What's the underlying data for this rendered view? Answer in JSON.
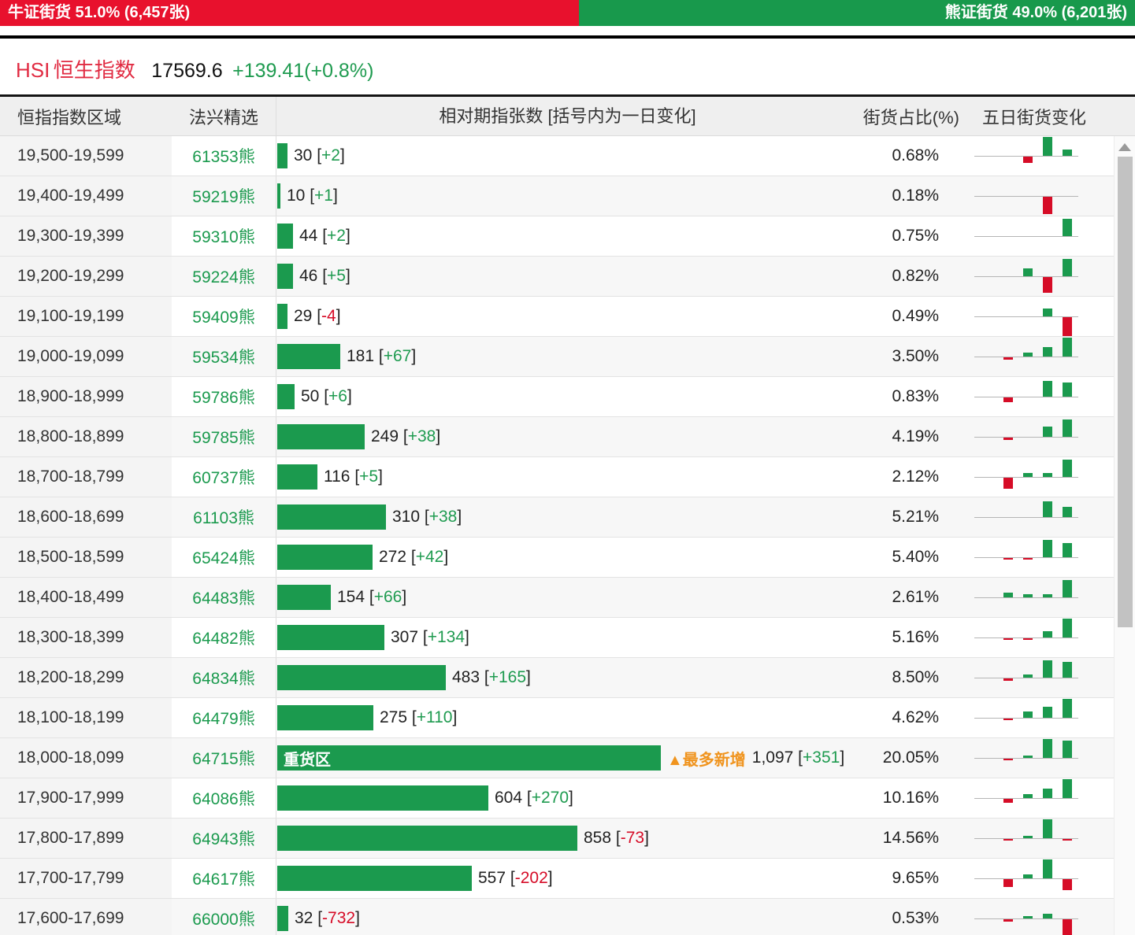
{
  "topbar": {
    "bull_label": "牛证街货 51.0% (6,457张)",
    "bear_label": "熊证街货 49.0% (6,201张)"
  },
  "index": {
    "code": "HSI",
    "name": "恒生指数",
    "price": "17569.6",
    "change": "+139.41(+0.8%)"
  },
  "table": {
    "headers": [
      "恒指指数区域",
      "法兴精选",
      "相对期指张数 [括号内为一日变化]",
      "街货占比(%)",
      "五日街货变化"
    ]
  },
  "colors": {
    "bull_red": "#e8112d",
    "bear_green": "#18994c",
    "bar_green": "#1b9a4e",
    "chart_red": "#d60c27",
    "title_red": "#e12b42",
    "badge_orange": "#f0941e"
  },
  "max_contracts": 1097,
  "rows": [
    {
      "range": "19,500-19,599",
      "code": "61353熊",
      "contracts": 30,
      "contracts_label": "30",
      "change": "+2",
      "pct": "0.68%",
      "five_day": [
        0,
        0,
        -8,
        24,
        8
      ]
    },
    {
      "range": "19,400-19,499",
      "code": "59219熊",
      "contracts": 10,
      "contracts_label": "10",
      "change": "+1",
      "pct": "0.18%",
      "five_day": [
        0,
        0,
        0,
        -22,
        0
      ]
    },
    {
      "range": "19,300-19,399",
      "code": "59310熊",
      "contracts": 44,
      "contracts_label": "44",
      "change": "+2",
      "pct": "0.75%",
      "five_day": [
        0,
        0,
        0,
        0,
        22
      ]
    },
    {
      "range": "19,200-19,299",
      "code": "59224熊",
      "contracts": 46,
      "contracts_label": "46",
      "change": "+5",
      "pct": "0.82%",
      "five_day": [
        0,
        0,
        10,
        -20,
        22
      ]
    },
    {
      "range": "19,100-19,199",
      "code": "59409熊",
      "contracts": 29,
      "contracts_label": "29",
      "change": "-4",
      "pct": "0.49%",
      "five_day": [
        0,
        0,
        0,
        10,
        -24
      ]
    },
    {
      "range": "19,000-19,099",
      "code": "59534熊",
      "contracts": 181,
      "contracts_label": "181",
      "change": "+67",
      "pct": "3.50%",
      "five_day": [
        0,
        -3,
        5,
        12,
        24
      ]
    },
    {
      "range": "18,900-18,999",
      "code": "59786熊",
      "contracts": 50,
      "contracts_label": "50",
      "change": "+6",
      "pct": "0.83%",
      "five_day": [
        0,
        -6,
        0,
        20,
        18
      ]
    },
    {
      "range": "18,800-18,899",
      "code": "59785熊",
      "contracts": 249,
      "contracts_label": "249",
      "change": "+38",
      "pct": "4.19%",
      "five_day": [
        0,
        -3,
        0,
        13,
        22
      ]
    },
    {
      "range": "18,700-18,799",
      "code": "60737熊",
      "contracts": 116,
      "contracts_label": "116",
      "change": "+5",
      "pct": "2.12%",
      "five_day": [
        0,
        -14,
        5,
        5,
        22
      ]
    },
    {
      "range": "18,600-18,699",
      "code": "61103熊",
      "contracts": 310,
      "contracts_label": "310",
      "change": "+38",
      "pct": "5.21%",
      "five_day": [
        0,
        0,
        0,
        20,
        13
      ]
    },
    {
      "range": "18,500-18,599",
      "code": "65424熊",
      "contracts": 272,
      "contracts_label": "272",
      "change": "+42",
      "pct": "5.40%",
      "five_day": [
        0,
        -2,
        -2,
        22,
        18
      ]
    },
    {
      "range": "18,400-18,499",
      "code": "64483熊",
      "contracts": 154,
      "contracts_label": "154",
      "change": "+66",
      "pct": "2.61%",
      "five_day": [
        0,
        6,
        4,
        4,
        22
      ]
    },
    {
      "range": "18,300-18,399",
      "code": "64482熊",
      "contracts": 307,
      "contracts_label": "307",
      "change": "+134",
      "pct": "5.16%",
      "five_day": [
        0,
        -2,
        -2,
        8,
        24
      ]
    },
    {
      "range": "18,200-18,299",
      "code": "64834熊",
      "contracts": 483,
      "contracts_label": "483",
      "change": "+165",
      "pct": "8.50%",
      "five_day": [
        0,
        -3,
        4,
        22,
        20
      ]
    },
    {
      "range": "18,100-18,199",
      "code": "64479熊",
      "contracts": 275,
      "contracts_label": "275",
      "change": "+110",
      "pct": "4.62%",
      "five_day": [
        0,
        -2,
        8,
        14,
        24
      ]
    },
    {
      "range": "18,000-18,099",
      "code": "64715熊",
      "contracts": 1097,
      "contracts_label": "1,097",
      "change": "+351",
      "pct": "20.05%",
      "five_day": [
        0,
        -2,
        3,
        24,
        22
      ],
      "zone_label": "重货区",
      "badge": "▲最多新增"
    },
    {
      "range": "17,900-17,999",
      "code": "64086熊",
      "contracts": 604,
      "contracts_label": "604",
      "change": "+270",
      "pct": "10.16%",
      "five_day": [
        0,
        -5,
        5,
        12,
        24
      ]
    },
    {
      "range": "17,800-17,899",
      "code": "64943熊",
      "contracts": 858,
      "contracts_label": "858",
      "change": "-73",
      "pct": "14.56%",
      "five_day": [
        0,
        -2,
        3,
        24,
        -2
      ]
    },
    {
      "range": "17,700-17,799",
      "code": "64617熊",
      "contracts": 557,
      "contracts_label": "557",
      "change": "-202",
      "pct": "9.65%",
      "five_day": [
        0,
        -10,
        5,
        24,
        -14
      ]
    },
    {
      "range": "17,600-17,699",
      "code": "66000熊",
      "contracts": 32,
      "contracts_label": "32",
      "change": "-732",
      "pct": "0.53%",
      "five_day": [
        0,
        -3,
        3,
        6,
        -24
      ]
    }
  ]
}
